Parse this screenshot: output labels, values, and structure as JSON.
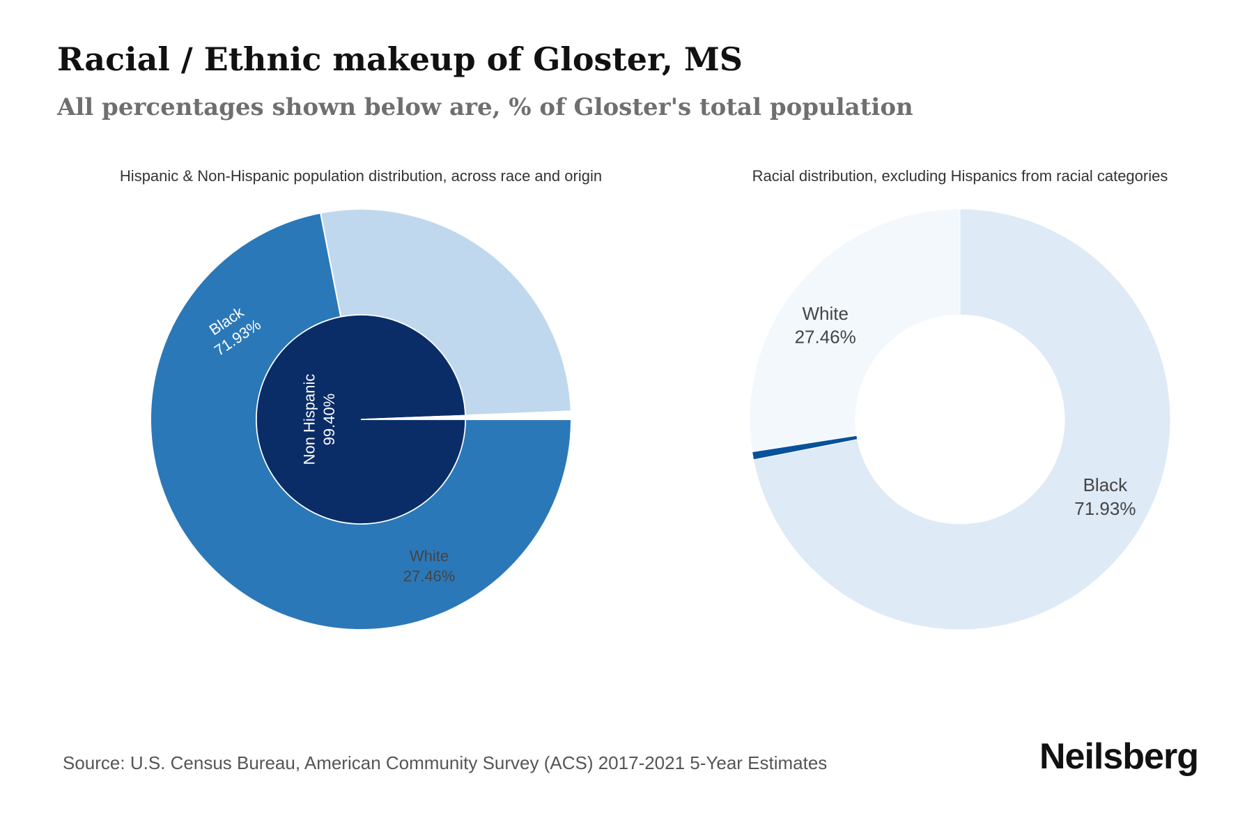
{
  "page": {
    "title": "Racial / Ethnic makeup of Gloster, MS",
    "subtitle": "All percentages shown below are, % of Gloster's total population",
    "source": "Source: U.S. Census Bureau, American Community Survey (ACS) 2017-2021 5-Year Estimates",
    "brand": "Neilsberg"
  },
  "chart_data": [
    {
      "type": "pie",
      "title": "Hispanic & Non-Hispanic population distribution, across race and origin",
      "inner_ring": [
        {
          "name": "Non Hispanic",
          "label": "99.40%",
          "value": 99.4,
          "color": "#0b2d67"
        },
        {
          "name": "",
          "label": "",
          "value": 0.6,
          "color": "#ffffff"
        }
      ],
      "outer_ring": [
        {
          "name": "Black",
          "label": "71.93%",
          "value": 71.93,
          "color": "#2b78b9"
        },
        {
          "name": "White",
          "label": "27.46%",
          "value": 27.46,
          "color": "#c0d8ed"
        },
        {
          "name": "",
          "label": "",
          "value": 0.61,
          "color": "#ffffff"
        }
      ]
    },
    {
      "type": "pie",
      "title": "Racial distribution, excluding Hispanics from racial categories",
      "slices": [
        {
          "name": "Black",
          "label": "71.93%",
          "value": 71.93,
          "color": "#deeaf6"
        },
        {
          "name": "",
          "label": "",
          "value": 0.61,
          "color": "#08519c"
        },
        {
          "name": "White",
          "label": "27.46%",
          "value": 27.46,
          "color": "#f3f8fd"
        }
      ]
    }
  ]
}
